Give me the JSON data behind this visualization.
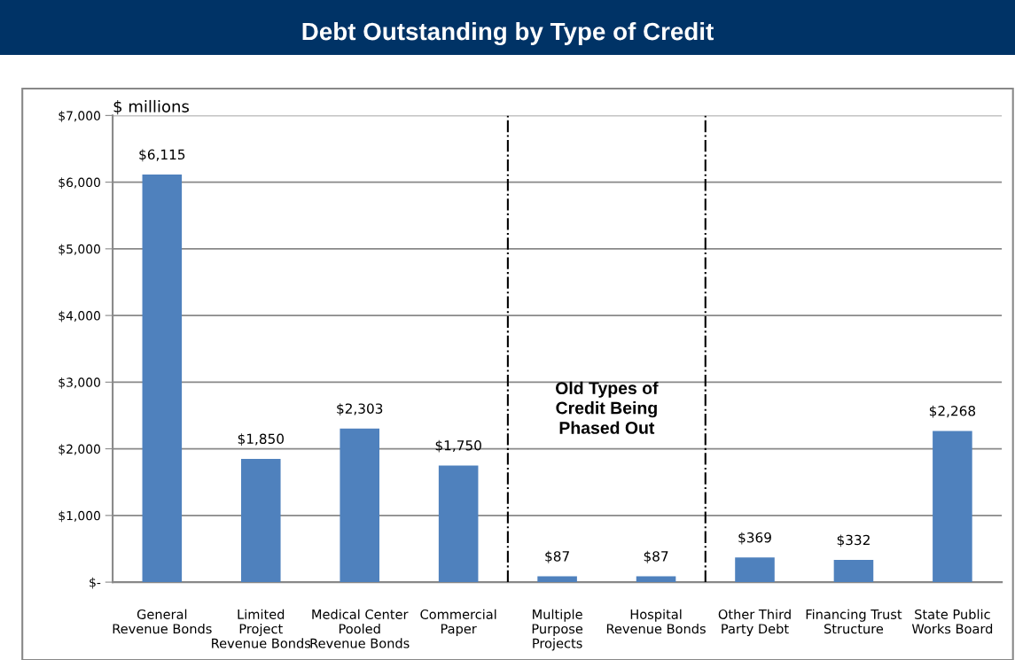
{
  "chart_data": {
    "type": "bar",
    "title": "Debt Outstanding by Type of Credit",
    "ylabel": "$ millions",
    "categories": [
      "General\nRevenue Bonds",
      "Limited\nProject\nRevenue Bonds",
      "Medical Center\nPooled\nRevenue Bonds",
      "Commercial\nPaper",
      "Multiple\nPurpose\nProjects",
      "Hospital\nRevenue Bonds",
      "Other Third\nParty Debt",
      "Financing Trust\nStructure",
      "State Public\nWorks Board"
    ],
    "values": [
      6115,
      1850,
      2303,
      1750,
      87,
      87,
      369,
      332,
      2268
    ],
    "value_labels": [
      "$6,115",
      "$1,850",
      "$2,303",
      "$1,750",
      "$87",
      "$87",
      "$369",
      "$332",
      "$2,268"
    ],
    "color": "#4f81bd",
    "ylim": [
      0,
      7000
    ],
    "yticks": [
      {
        "value": 0,
        "label": "$-"
      },
      {
        "value": 1000,
        "label": "$1,000"
      },
      {
        "value": 2000,
        "label": "$2,000"
      },
      {
        "value": 3000,
        "label": "$3,000"
      },
      {
        "value": 4000,
        "label": "$4,000"
      },
      {
        "value": 5000,
        "label": "$5,000"
      },
      {
        "value": 6000,
        "label": "$6,000"
      },
      {
        "value": 7000,
        "label": "$7,000"
      }
    ],
    "grid": "y",
    "annotations": [
      "Old Types of\nCredit Being\nPhased Out"
    ]
  }
}
